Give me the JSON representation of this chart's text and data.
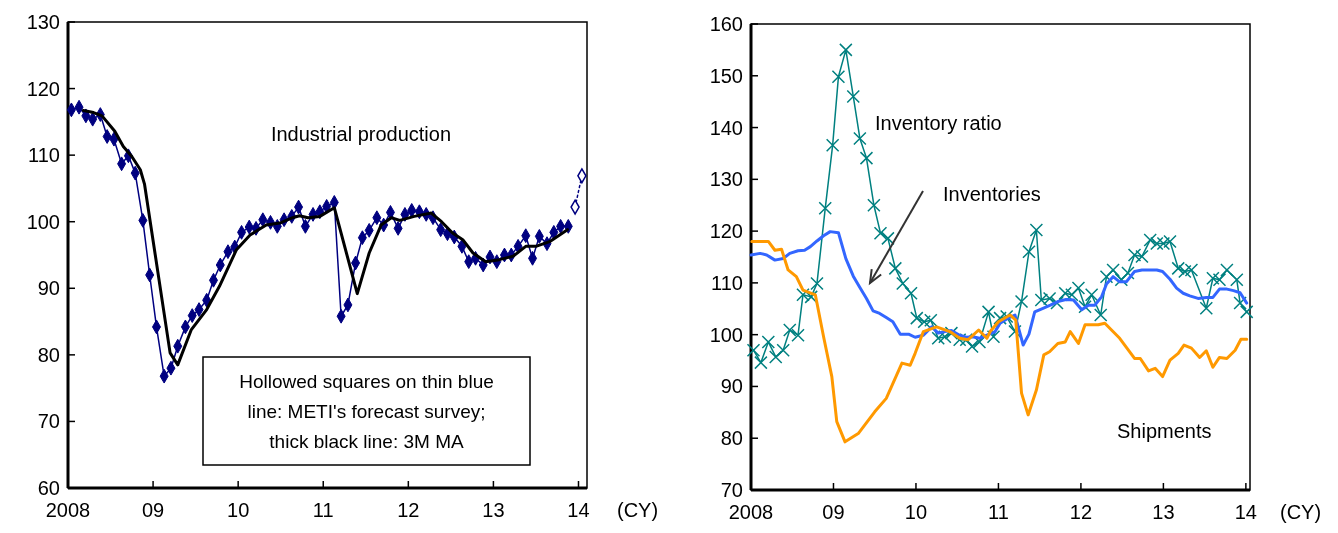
{
  "chart_data": [
    {
      "type": "line",
      "title": "Industrial production",
      "xlabel": "(CY)",
      "annotations": [
        "Hollowed squares on thin blue line: METI's forecast survey; thick black line: 3M MA"
      ],
      "xlim": [
        2008,
        2014.1
      ],
      "xticks": [
        {
          "value": 2008,
          "label": "2008"
        },
        {
          "value": 2009,
          "label": "09"
        },
        {
          "value": 2010,
          "label": "10"
        },
        {
          "value": 2011,
          "label": "11"
        },
        {
          "value": 2012,
          "label": "12"
        },
        {
          "value": 2013,
          "label": "13"
        },
        {
          "value": 2014,
          "label": "14"
        }
      ],
      "ylim": [
        60,
        130
      ],
      "yticks": [
        60,
        70,
        80,
        90,
        100,
        110,
        120,
        130
      ],
      "series": [
        {
          "color": "#000080",
          "marker": "diamond",
          "x": [
            2008.04,
            2008.13,
            2008.21,
            2008.29,
            2008.38,
            2008.46,
            2008.54,
            2008.63,
            2008.71,
            2008.79,
            2008.88,
            2008.96,
            2009.04,
            2009.13,
            2009.21,
            2009.29,
            2009.38,
            2009.46,
            2009.54,
            2009.63,
            2009.71,
            2009.79,
            2009.88,
            2009.96,
            2010.04,
            2010.13,
            2010.21,
            2010.29,
            2010.38,
            2010.46,
            2010.54,
            2010.63,
            2010.71,
            2010.79,
            2010.88,
            2010.96,
            2011.04,
            2011.13,
            2011.21,
            2011.29,
            2011.38,
            2011.46,
            2011.54,
            2011.63,
            2011.71,
            2011.79,
            2011.88,
            2011.96,
            2012.04,
            2012.13,
            2012.21,
            2012.29,
            2012.38,
            2012.46,
            2012.54,
            2012.63,
            2012.71,
            2012.79,
            2012.88,
            2012.96,
            2013.04,
            2013.13,
            2013.21,
            2013.29,
            2013.38,
            2013.46,
            2013.54,
            2013.63,
            2013.71,
            2013.79,
            2013.88
          ],
          "values": [
            116.8,
            117.2,
            115.9,
            115.4,
            116.1,
            112.8,
            112.4,
            108.7,
            109.9,
            107.3,
            100.2,
            92.0,
            84.2,
            76.8,
            78.0,
            81.3,
            84.2,
            85.9,
            86.8,
            88.2,
            91.2,
            93.5,
            95.5,
            96.2,
            98.4,
            99.2,
            99.0,
            100.3,
            99.9,
            99.3,
            100.3,
            100.8,
            102.2,
            99.3,
            101.1,
            101.5,
            102.3,
            102.9,
            85.8,
            87.5,
            93.8,
            97.6,
            98.7,
            100.6,
            99.5,
            101.4,
            99.0,
            101.1,
            101.7,
            101.5,
            101.1,
            100.6,
            98.8,
            98.2,
            97.7,
            96.3,
            94.0,
            94.5,
            93.5,
            94.7,
            94.0,
            95.0,
            95.0,
            96.3,
            97.9,
            94.5,
            97.8,
            96.7,
            98.4,
            99.3,
            99.3
          ]
        },
        {
          "color": "#000000",
          "marker": "none",
          "x": [
            2008.18,
            2008.3,
            2008.4,
            2008.55,
            2008.65,
            2008.75,
            2008.85,
            2008.9,
            2009.2,
            2009.29,
            2009.45,
            2009.63,
            2009.78,
            2009.98,
            2010.14,
            2010.33,
            2010.49,
            2010.64,
            2010.72,
            2010.82,
            2010.96,
            2011.13,
            2011.4,
            2011.54,
            2011.68,
            2011.8,
            2011.9,
            2012.07,
            2012.27,
            2012.39,
            2012.52,
            2012.64,
            2012.76,
            2012.91,
            2013.07,
            2013.23,
            2013.38,
            2013.5,
            2013.66,
            2013.87
          ],
          "values": [
            116.7,
            116.4,
            115.9,
            113.6,
            111.3,
            109.8,
            107.8,
            105.6,
            80.3,
            78.5,
            83.8,
            86.8,
            90.3,
            95.8,
            98.0,
            99.5,
            99.8,
            100.6,
            100.9,
            100.6,
            100.8,
            102.1,
            89.2,
            95.3,
            99.5,
            100.6,
            100.2,
            100.8,
            101.3,
            100.0,
            98.3,
            97.3,
            95.3,
            94.0,
            94.3,
            94.8,
            96.3,
            96.3,
            97.0,
            98.8
          ]
        },
        {
          "color": "#000080",
          "marker": "diamond",
          "line_style": "dotted",
          "x": [
            2013.96,
            2014.04
          ],
          "values": [
            102.2,
            106.9
          ]
        }
      ]
    },
    {
      "type": "line",
      "xlabel": "(CY)",
      "xlim": [
        2008,
        2014.05
      ],
      "xticks": [
        {
          "value": 2008,
          "label": "2008"
        },
        {
          "value": 2009,
          "label": "09"
        },
        {
          "value": 2010,
          "label": "10"
        },
        {
          "value": 2011,
          "label": "11"
        },
        {
          "value": 2012,
          "label": "12"
        },
        {
          "value": 2013,
          "label": "13"
        },
        {
          "value": 2014,
          "label": "14"
        }
      ],
      "ylim": [
        70,
        160
      ],
      "yticks": [
        70,
        80,
        90,
        100,
        110,
        120,
        130,
        140,
        150,
        160
      ],
      "series": [
        {
          "name": "Inventory ratio",
          "color": "#008080",
          "marker": "cross",
          "x": [
            2008.03,
            2008.12,
            2008.21,
            2008.3,
            2008.39,
            2008.47,
            2008.57,
            2008.63,
            2008.73,
            2008.8,
            2008.9,
            2008.99,
            2009.06,
            2009.15,
            2009.24,
            2009.32,
            2009.4,
            2009.49,
            2009.57,
            2009.66,
            2009.75,
            2009.84,
            2009.94,
            2010.01,
            2010.1,
            2010.18,
            2010.27,
            2010.35,
            2010.43,
            2010.53,
            2010.61,
            2010.68,
            2010.77,
            2010.88,
            2010.94,
            2011.02,
            2011.1,
            2011.2,
            2011.28,
            2011.37,
            2011.46,
            2011.52,
            2011.62,
            2011.71,
            2011.81,
            2011.89,
            2011.97,
            2012.05,
            2012.13,
            2012.24,
            2012.31,
            2012.39,
            2012.49,
            2012.57,
            2012.65,
            2012.74,
            2012.84,
            2012.92,
            2013.0,
            2013.08,
            2013.18,
            2013.26,
            2013.34,
            2013.52,
            2013.6,
            2013.68,
            2013.77,
            2013.89,
            2013.93,
            2014.01
          ],
          "values": [
            97.0,
            94.6,
            98.6,
            95.7,
            97.0,
            100.9,
            99.9,
            107.7,
            107.3,
            109.9,
            124.4,
            136.6,
            149.8,
            155.0,
            146.0,
            137.9,
            134.1,
            125.0,
            119.6,
            118.6,
            112.8,
            109.9,
            108.0,
            103.2,
            102.5,
            102.8,
            99.3,
            99.6,
            100.3,
            99.0,
            99.0,
            97.7,
            98.6,
            104.4,
            99.6,
            103.2,
            103.5,
            100.6,
            106.4,
            116.0,
            120.2,
            106.7,
            107.0,
            106.1,
            108.0,
            107.7,
            109.0,
            105.4,
            107.7,
            103.8,
            111.2,
            112.5,
            110.6,
            111.9,
            115.4,
            115.1,
            118.3,
            117.6,
            117.6,
            118.0,
            112.8,
            112.2,
            112.5,
            105.1,
            110.9,
            110.6,
            112.5,
            110.6,
            106.1,
            104.4
          ]
        },
        {
          "name": "Inventories",
          "color": "#3366ff",
          "marker": "none",
          "x": [
            2008.0,
            2008.11,
            2008.19,
            2008.29,
            2008.39,
            2008.47,
            2008.57,
            2008.65,
            2008.72,
            2008.8,
            2008.88,
            2008.96,
            2009.06,
            2009.15,
            2009.24,
            2009.32,
            2009.4,
            2009.48,
            2009.56,
            2009.64,
            2009.72,
            2009.81,
            2009.91,
            2009.99,
            2010.09,
            2010.19,
            2010.27,
            2010.35,
            2010.43,
            2010.53,
            2010.61,
            2010.69,
            2010.77,
            2010.86,
            2010.96,
            2011.02,
            2011.12,
            2011.2,
            2011.3,
            2011.37,
            2011.44,
            2011.54,
            2011.63,
            2011.72,
            2011.82,
            2011.91,
            2012.01,
            2012.09,
            2012.17,
            2012.25,
            2012.31,
            2012.39,
            2012.47,
            2012.55,
            2012.65,
            2012.74,
            2012.84,
            2012.92,
            2012.99,
            2013.08,
            2013.16,
            2013.24,
            2013.32,
            2013.42,
            2013.52,
            2013.6,
            2013.68,
            2013.77,
            2013.85,
            2013.93,
            2014.01
          ],
          "values": [
            115.4,
            115.7,
            115.4,
            114.4,
            114.7,
            115.7,
            116.2,
            116.3,
            117.0,
            118.1,
            119.1,
            119.9,
            119.7,
            114.7,
            111.3,
            109.1,
            107.0,
            104.6,
            104.1,
            103.3,
            102.5,
            100.1,
            100.1,
            99.5,
            99.9,
            101.5,
            100.3,
            100.6,
            100.8,
            99.9,
            99.5,
            99.6,
            99.3,
            99.9,
            100.6,
            102.2,
            103.2,
            103.8,
            98.0,
            100.1,
            104.4,
            105.1,
            105.7,
            106.4,
            106.8,
            106.7,
            104.8,
            105.7,
            105.7,
            107.3,
            109.8,
            111.2,
            110.2,
            110.2,
            112.2,
            112.5,
            112.5,
            112.5,
            112.2,
            110.7,
            109.0,
            108.0,
            107.5,
            107.0,
            107.2,
            107.2,
            108.8,
            108.8,
            108.5,
            108.1,
            106.1
          ]
        },
        {
          "name": "Shipments",
          "color": "#ff9900",
          "marker": "none",
          "x": [
            2008.01,
            2008.21,
            2008.29,
            2008.37,
            2008.45,
            2008.55,
            2008.63,
            2008.78,
            2008.88,
            2008.98,
            2009.04,
            2009.14,
            2009.3,
            2009.5,
            2009.64,
            2009.83,
            2009.93,
            2009.99,
            2010.09,
            2010.25,
            2010.41,
            2010.53,
            2010.63,
            2010.76,
            2010.86,
            2010.9,
            2011.0,
            2011.14,
            2011.21,
            2011.28,
            2011.36,
            2011.46,
            2011.55,
            2011.62,
            2011.72,
            2011.81,
            2011.87,
            2011.97,
            2012.05,
            2012.21,
            2012.29,
            2012.47,
            2012.65,
            2012.72,
            2012.82,
            2012.9,
            2012.99,
            2013.08,
            2013.18,
            2013.25,
            2013.34,
            2013.44,
            2013.52,
            2013.6,
            2013.68,
            2013.77,
            2013.87,
            2013.94,
            2014.01
          ],
          "values": [
            118.0,
            118.0,
            116.3,
            116.5,
            112.5,
            111.2,
            108.6,
            107.7,
            99.6,
            91.9,
            83.2,
            79.3,
            80.9,
            85.1,
            87.7,
            94.5,
            94.1,
            96.4,
            100.6,
            101.5,
            100.6,
            99.3,
            99.0,
            100.9,
            99.3,
            100.6,
            102.5,
            103.8,
            102.8,
            88.7,
            84.5,
            89.3,
            96.1,
            96.7,
            98.3,
            98.6,
            100.6,
            98.3,
            101.9,
            101.9,
            102.2,
            99.3,
            95.4,
            95.4,
            93.0,
            93.5,
            91.9,
            95.1,
            96.4,
            98.0,
            97.4,
            95.6,
            96.9,
            93.7,
            95.6,
            95.4,
            97.0,
            99.1,
            99.1
          ]
        }
      ]
    }
  ]
}
